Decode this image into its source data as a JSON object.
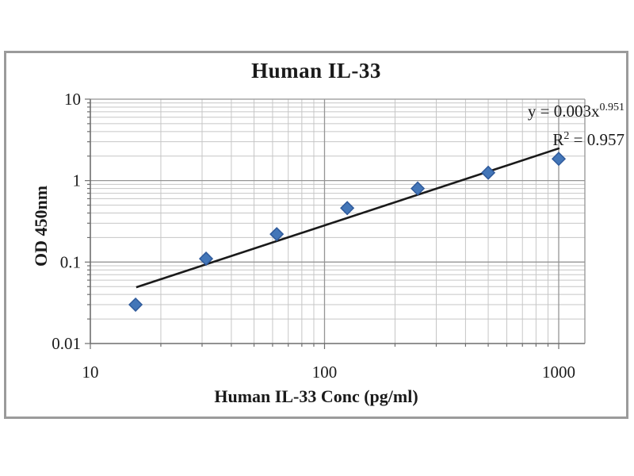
{
  "page": {
    "background": "#ffffff",
    "frame_border_color": "#9b9b9b"
  },
  "chart_data": {
    "type": "scatter",
    "title": "Human IL-33",
    "xlabel": "Human IL-33 Conc (pg/ml)",
    "ylabel": "OD 450nm",
    "x_scale": "log",
    "y_scale": "log",
    "xlim": [
      10,
      1300
    ],
    "ylim": [
      0.01,
      10
    ],
    "x_ticks": [
      10,
      100,
      1000
    ],
    "x_tick_labels": [
      "10",
      "100",
      "1000"
    ],
    "y_ticks": [
      10,
      1,
      0.1,
      0.01
    ],
    "y_tick_labels": [
      "10",
      "1",
      "0.1",
      "0.01"
    ],
    "grid": true,
    "legend": "none",
    "points": [
      {
        "x": 15.6,
        "y": 0.03
      },
      {
        "x": 31.2,
        "y": 0.11
      },
      {
        "x": 62.5,
        "y": 0.22
      },
      {
        "x": 125,
        "y": 0.46
      },
      {
        "x": 250,
        "y": 0.8
      },
      {
        "x": 500,
        "y": 1.25
      },
      {
        "x": 1000,
        "y": 1.85
      }
    ],
    "trendline": {
      "x1": 15.7,
      "y1": 0.049,
      "x2": 1007,
      "y2": 2.5,
      "color": "#1a1a1a"
    },
    "equation": {
      "base": "y = 0.003x",
      "exponent": "0.951"
    },
    "r_squared": {
      "base": "R",
      "sup": "2",
      "value": " = 0.957"
    },
    "marker": {
      "shape": "diamond",
      "fill": "#4376b8",
      "stroke": "#2f5a9b"
    },
    "colors": {
      "grid_minor": "#c6c6c6",
      "grid_major": "#959595",
      "axis": "#6e6e6e",
      "text": "#1a1a1a"
    }
  }
}
